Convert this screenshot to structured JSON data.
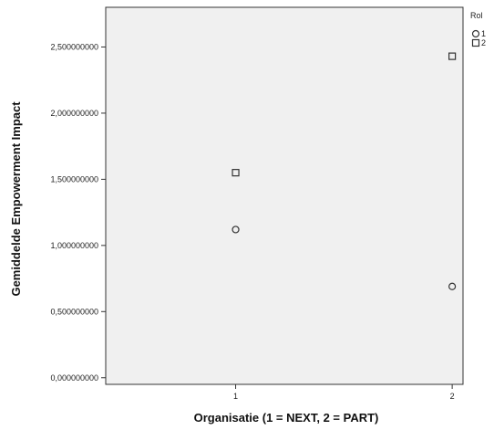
{
  "chart_data": {
    "type": "scatter",
    "xlabel": "Organisatie (1 = NEXT, 2 = PART)",
    "ylabel": "Gemiddelde Empowerment Impact",
    "x_ticks": [
      "1",
      "2"
    ],
    "y_ticks": [
      "0,000000000",
      "0,500000000",
      "1,000000000",
      "1,500000000",
      "2,000000000",
      "2,500000000"
    ],
    "xlim": [
      0.4,
      2.05
    ],
    "ylim": [
      -0.05,
      2.8
    ],
    "grid": false,
    "legend": {
      "title": "Rol",
      "placement": "right"
    },
    "series": [
      {
        "name": "1",
        "marker": "circle",
        "color": "#333333",
        "points": [
          {
            "x": 1,
            "y": 1.12
          },
          {
            "x": 2,
            "y": 0.69
          }
        ]
      },
      {
        "name": "2",
        "marker": "square",
        "color": "#333333",
        "points": [
          {
            "x": 1,
            "y": 1.55
          },
          {
            "x": 2,
            "y": 2.43
          }
        ]
      }
    ],
    "colors": {
      "plot_background": "#f0f0f0",
      "frame": "#333333"
    }
  }
}
